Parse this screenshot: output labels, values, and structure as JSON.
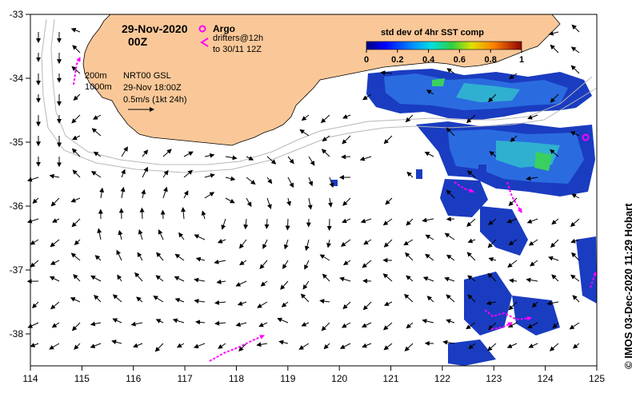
{
  "title": {
    "date": "29-Nov-2020",
    "hour": "00Z"
  },
  "legend": {
    "argo": "Argo",
    "drifters_line1": "drifters@12h",
    "drifters_line2": "to 30/11 12Z",
    "argo_color": "#ff00ff",
    "drifter_color": "#ff00ff"
  },
  "contours": {
    "label_200": "200m",
    "label_1000": "1000m"
  },
  "product": {
    "line1": "NRT00 GSL",
    "line2": "29-Nov 18:00Z",
    "line3": "0.5m/s (1kt 24h)"
  },
  "colorbar": {
    "title": "std dev of 4hr SST comp",
    "ticks": [
      "0",
      "0.2",
      "0.4",
      "0.6",
      "0.8",
      "1"
    ]
  },
  "axes": {
    "x_ticks": [
      "114",
      "115",
      "116",
      "117",
      "118",
      "119",
      "120",
      "121",
      "122",
      "123",
      "124",
      "125"
    ],
    "y_ticks": [
      "-33",
      "-34",
      "-35",
      "-36",
      "-37",
      "-38"
    ],
    "lon_range": [
      114,
      125
    ],
    "lat_range": [
      -38.5,
      -33
    ]
  },
  "credit": "© IMOS 03-Dec-2020 11:29 Hobart",
  "colors": {
    "land": "#fac898",
    "sea": "#ffffff",
    "sst_low": "#0a1a9c",
    "sst_mid": "#1c8cd8",
    "sst_high": "#2ec46a"
  }
}
